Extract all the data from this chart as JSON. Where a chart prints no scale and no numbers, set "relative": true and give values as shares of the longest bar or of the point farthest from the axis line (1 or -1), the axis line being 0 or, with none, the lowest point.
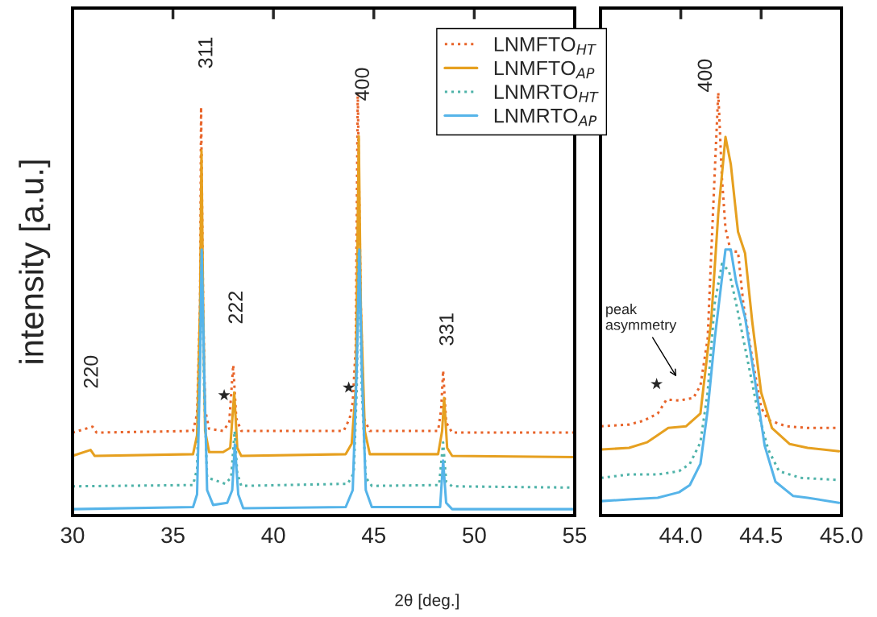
{
  "chart_data": [
    {
      "type": "line",
      "relative": true,
      "xlabel": "2θ [deg.]",
      "ylabel": "intensity [a.u.]",
      "xlim": [
        30,
        55
      ],
      "xticks": [
        30,
        35,
        40,
        45,
        50,
        55
      ],
      "ylim": [
        0,
        1.2
      ],
      "legend": "top right",
      "grid": false,
      "series": [
        {
          "name": "LNMFTO$_{HT}$",
          "color": "#e8642a",
          "line_style": "dotted",
          "x": [
            30,
            31.0,
            31.2,
            36.0,
            36.2,
            36.35,
            36.4,
            36.5,
            36.6,
            36.8,
            37.5,
            37.8,
            38.0,
            38.15,
            38.4,
            43.5,
            43.8,
            43.95,
            44.1,
            44.2,
            44.35,
            44.5,
            44.8,
            48.2,
            48.35,
            48.45,
            48.6,
            48.9,
            55
          ],
          "values": [
            0.196,
            0.21,
            0.196,
            0.2,
            0.24,
            0.5,
            0.966,
            0.5,
            0.25,
            0.205,
            0.2,
            0.22,
            0.356,
            0.23,
            0.2,
            0.2,
            0.23,
            0.267,
            0.4,
            1.0,
            0.5,
            0.23,
            0.2,
            0.2,
            0.25,
            0.343,
            0.22,
            0.196,
            0.196
          ]
        },
        {
          "name": "LNMFTO$_{AP}$",
          "color": "#e6a020",
          "line_style": "solid",
          "x": [
            30,
            30.9,
            31.1,
            36.0,
            36.2,
            36.35,
            36.42,
            36.5,
            36.6,
            36.8,
            37.5,
            37.85,
            38.05,
            38.2,
            38.4,
            43.6,
            43.9,
            44.1,
            44.25,
            44.35,
            44.55,
            44.8,
            48.2,
            48.4,
            48.5,
            48.65,
            48.9,
            55
          ],
          "values": [
            0.141,
            0.155,
            0.141,
            0.145,
            0.19,
            0.5,
            0.863,
            0.5,
            0.2,
            0.15,
            0.15,
            0.16,
            0.291,
            0.16,
            0.141,
            0.145,
            0.17,
            0.3,
            0.897,
            0.5,
            0.2,
            0.145,
            0.145,
            0.2,
            0.278,
            0.16,
            0.141,
            0.138
          ]
        },
        {
          "name": "LNMRTO$_{HT}$",
          "color": "#4fb3a9",
          "line_style": "dotted",
          "x": [
            30,
            36.0,
            36.2,
            36.35,
            36.43,
            36.55,
            36.7,
            37.6,
            37.9,
            38.07,
            38.2,
            38.4,
            43.7,
            44.0,
            44.15,
            44.25,
            44.4,
            44.6,
            44.9,
            48.25,
            48.45,
            48.6,
            48.9,
            55
          ],
          "values": [
            0.069,
            0.072,
            0.11,
            0.4,
            0.62,
            0.3,
            0.09,
            0.075,
            0.09,
            0.2,
            0.1,
            0.07,
            0.075,
            0.1,
            0.3,
            0.62,
            0.3,
            0.09,
            0.07,
            0.072,
            0.173,
            0.08,
            0.069,
            0.066
          ]
        },
        {
          "name": "LNMRTO$_{AP}$",
          "color": "#56b4e9",
          "line_style": "solid",
          "x": [
            30,
            36.0,
            36.2,
            36.35,
            36.43,
            36.55,
            36.7,
            37.0,
            37.7,
            37.95,
            38.08,
            38.25,
            38.5,
            43.6,
            43.95,
            44.15,
            44.28,
            44.4,
            44.6,
            44.9,
            48.3,
            48.45,
            48.6,
            48.9,
            55
          ],
          "values": [
            0.015,
            0.02,
            0.05,
            0.35,
            0.629,
            0.35,
            0.06,
            0.025,
            0.03,
            0.06,
            0.168,
            0.05,
            0.017,
            0.02,
            0.06,
            0.35,
            0.629,
            0.35,
            0.06,
            0.02,
            0.02,
            0.13,
            0.03,
            0.015,
            0.015
          ]
        }
      ],
      "annotations": [
        "220",
        "311",
        "222",
        "400",
        "331",
        "★",
        "★"
      ]
    },
    {
      "type": "line",
      "relative": true,
      "xlim": [
        43.5,
        45.0
      ],
      "xticks": [
        {
          "value": 43.5,
          "label": null
        },
        {
          "value": 44.0,
          "label": "44.0"
        },
        {
          "value": 44.5,
          "label": "44.5"
        },
        {
          "value": 45.0,
          "label": "45.0"
        }
      ],
      "ylim": [
        0,
        1.2
      ],
      "grid": false,
      "series": [
        {
          "color": "#e8642a",
          "line_style": "dotted",
          "x": [
            43.504,
            43.678,
            43.767,
            43.856,
            43.911,
            43.989,
            44.078,
            44.122,
            44.167,
            44.2,
            44.233,
            44.256,
            44.278,
            44.311,
            44.356,
            44.389,
            44.444,
            44.5,
            44.544,
            44.656,
            44.789,
            44.984
          ],
          "values": [
            0.211,
            0.215,
            0.224,
            0.241,
            0.274,
            0.272,
            0.278,
            0.307,
            0.418,
            0.714,
            1.0,
            0.797,
            0.679,
            0.624,
            0.624,
            0.501,
            0.373,
            0.255,
            0.226,
            0.211,
            0.207,
            0.207
          ]
        },
        {
          "color": "#e6a020",
          "line_style": "solid",
          "x": [
            43.504,
            43.678,
            43.789,
            43.856,
            43.922,
            44.033,
            44.122,
            44.189,
            44.233,
            44.278,
            44.311,
            44.356,
            44.4,
            44.444,
            44.5,
            44.567,
            44.678,
            44.789,
            44.984
          ],
          "values": [
            0.156,
            0.16,
            0.173,
            0.19,
            0.207,
            0.211,
            0.241,
            0.46,
            0.713,
            0.895,
            0.831,
            0.671,
            0.62,
            0.46,
            0.291,
            0.207,
            0.169,
            0.16,
            0.152
          ]
        },
        {
          "color": "#4fb3a9",
          "line_style": "dotted",
          "x": [
            43.504,
            43.678,
            43.856,
            43.989,
            44.056,
            44.122,
            44.167,
            44.211,
            44.256,
            44.3,
            44.344,
            44.411,
            44.478,
            44.544,
            44.611,
            44.744,
            44.984
          ],
          "values": [
            0.089,
            0.097,
            0.097,
            0.105,
            0.122,
            0.173,
            0.291,
            0.502,
            0.595,
            0.578,
            0.502,
            0.376,
            0.249,
            0.156,
            0.105,
            0.089,
            0.084
          ]
        },
        {
          "color": "#56b4e9",
          "line_style": "solid",
          "x": [
            43.504,
            43.678,
            43.856,
            43.989,
            44.056,
            44.122,
            44.167,
            44.211,
            44.256,
            44.278,
            44.311,
            44.344,
            44.4,
            44.456,
            44.522,
            44.589,
            44.7,
            44.789,
            44.984
          ],
          "values": [
            0.034,
            0.038,
            0.042,
            0.055,
            0.072,
            0.122,
            0.249,
            0.418,
            0.561,
            0.629,
            0.629,
            0.553,
            0.468,
            0.333,
            0.165,
            0.08,
            0.046,
            0.042,
            0.03
          ]
        }
      ],
      "annotations": [
        "400",
        "★",
        "peak\nasymmetry"
      ]
    }
  ]
}
